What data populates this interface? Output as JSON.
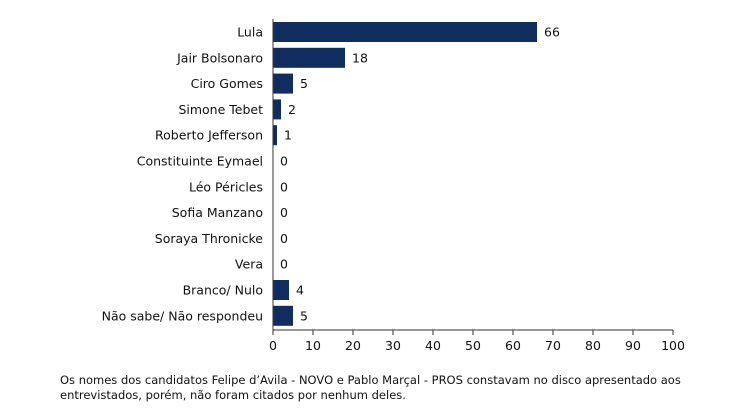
{
  "chart_data": {
    "type": "bar",
    "orientation": "horizontal",
    "categories": [
      "Lula",
      "Jair Bolsonaro",
      "Ciro Gomes",
      "Simone Tebet",
      "Roberto Jefferson",
      "Constituinte Eymael",
      "Léo Péricles",
      "Sofia Manzano",
      "Soraya Thronicke",
      "Vera",
      "Branco/ Nulo",
      "Não sabe/ Não respondeu"
    ],
    "values": [
      66,
      18,
      5,
      2,
      1,
      0,
      0,
      0,
      0,
      0,
      4,
      5
    ],
    "xlim": [
      0,
      100
    ],
    "xticks": [
      0,
      10,
      20,
      30,
      40,
      50,
      60,
      70,
      80,
      90,
      100
    ],
    "bar_color": "#0f2d5e",
    "grid": false,
    "legend": "none"
  },
  "footnote": "Os nomes dos candidatos Felipe d’Avila - NOVO e Pablo Marçal - PROS constavam no disco apresentado aos entrevistados, porém, não foram citados por nenhum deles."
}
